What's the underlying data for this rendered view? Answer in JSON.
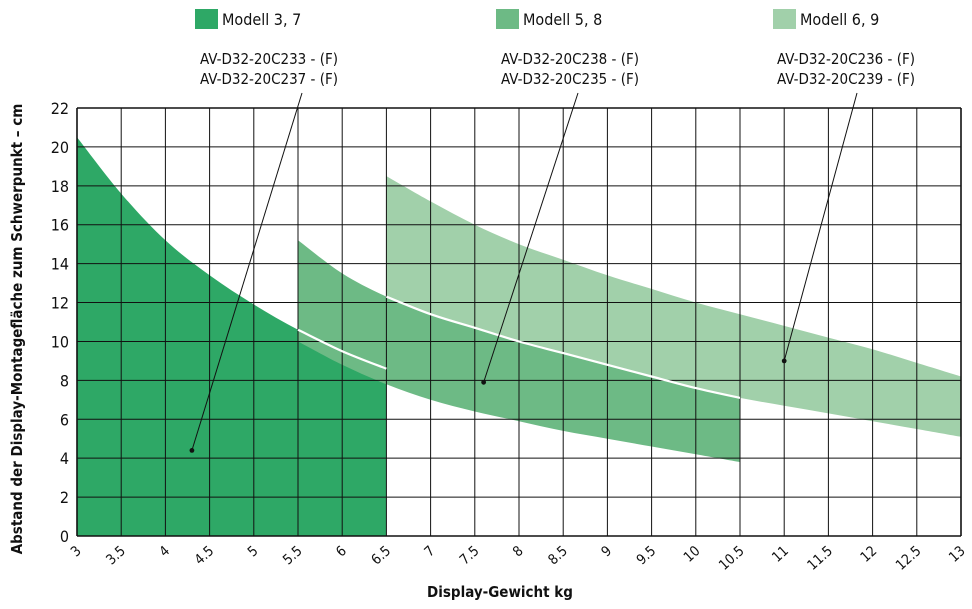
{
  "chart_data": {
    "type": "area",
    "title": "",
    "xlabel": "Display-Gewicht kg",
    "ylabel": "Abstand der Display-Montagefläche zum Schwerpunkt – cm",
    "xlim": [
      3,
      13
    ],
    "ylim": [
      0,
      22
    ],
    "x_ticks": [
      "3",
      "3.5",
      "4",
      "4.5",
      "5",
      "5.5",
      "6",
      "6.5",
      "7",
      "7.5",
      "8",
      "8.5",
      "9",
      "9.5",
      "10",
      "10.5",
      "11",
      "11.5",
      "12",
      "12.5",
      "13"
    ],
    "y_ticks": [
      "0",
      "2",
      "4",
      "6",
      "8",
      "10",
      "12",
      "14",
      "16",
      "18",
      "20",
      "22"
    ],
    "grid": true,
    "legend_position": "top",
    "series": [
      {
        "name": "Modell 3, 7",
        "color": "#2ea866",
        "models": [
          "AV-D32-20C233 - (F)",
          "AV-D32-20C237 - (F)"
        ],
        "x_range": [
          3,
          6.5
        ],
        "upper": {
          "x": [
            3,
            3.5,
            4,
            4.5,
            5,
            5.5,
            6,
            6.5
          ],
          "y": [
            20.5,
            17.6,
            15.2,
            13.4,
            11.9,
            10.6,
            9.5,
            8.6
          ]
        },
        "lower": {
          "x": [
            3,
            6.5
          ],
          "y": [
            0,
            0
          ]
        }
      },
      {
        "name": "Modell 5, 8",
        "color": "#6dba85",
        "models": [
          "AV-D32-20C238 - (F)",
          "AV-D32-20C235 - (F)"
        ],
        "x_range": [
          5.5,
          10.5
        ],
        "upper": {
          "x": [
            5.5,
            6,
            6.5,
            7,
            7.5,
            8,
            8.5,
            9,
            9.5,
            10,
            10.5
          ],
          "y": [
            15.2,
            13.5,
            12.3,
            11.4,
            10.7,
            10.0,
            9.4,
            8.8,
            8.2,
            7.6,
            7.1
          ]
        },
        "lower": {
          "x": [
            5.5,
            6,
            6.5,
            7,
            7.5,
            8,
            8.5,
            9,
            9.5,
            10,
            10.5
          ],
          "y": [
            10.0,
            8.8,
            7.8,
            7.0,
            6.4,
            5.9,
            5.4,
            5.0,
            4.6,
            4.2,
            3.8
          ]
        }
      },
      {
        "name": "Modell 6, 9",
        "color": "#a1d0aa",
        "models": [
          "AV-D32-20C236 - (F)",
          "AV-D32-20C239 - (F)"
        ],
        "x_range": [
          6.5,
          13
        ],
        "upper": {
          "x": [
            6.5,
            7,
            7.5,
            8,
            8.5,
            9,
            9.5,
            10,
            10.5,
            11,
            11.5,
            12,
            12.5,
            13
          ],
          "y": [
            18.5,
            17.2,
            16.0,
            15.0,
            14.2,
            13.4,
            12.7,
            12.0,
            11.4,
            10.8,
            10.2,
            9.6,
            8.9,
            8.2
          ]
        },
        "lower": {
          "x": [
            6.5,
            7,
            7.5,
            8,
            8.5,
            9,
            9.5,
            10,
            10.5,
            11,
            11.5,
            12,
            12.5,
            13
          ],
          "y": [
            12.3,
            11.4,
            10.7,
            10.0,
            9.4,
            8.8,
            8.2,
            7.6,
            7.1,
            6.7,
            6.3,
            5.9,
            5.5,
            5.1
          ]
        }
      }
    ],
    "callouts": [
      {
        "series": 0,
        "point": [
          4.3,
          4.4
        ]
      },
      {
        "series": 1,
        "point": [
          7.6,
          7.9
        ]
      },
      {
        "series": 2,
        "point": [
          11.0,
          9.0
        ]
      }
    ]
  }
}
